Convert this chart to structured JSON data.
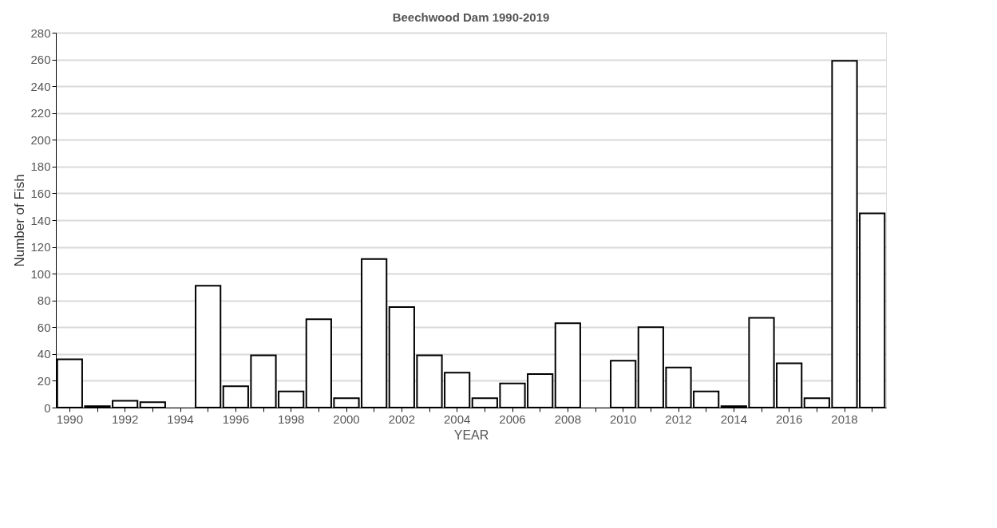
{
  "chart_data": {
    "type": "bar",
    "title": "Beechwood Dam 1990-2019",
    "xlabel": "YEAR",
    "ylabel": "Number of Fish",
    "categories": [
      "1990",
      null,
      "1992",
      null,
      "1994",
      null,
      "1996",
      null,
      "1998",
      null,
      "2000",
      null,
      "2002",
      null,
      "2004",
      null,
      "2006",
      null,
      "2008",
      null,
      "2010",
      null,
      "2012",
      null,
      "2014",
      null,
      "2016",
      null,
      "2018",
      null
    ],
    "values": [
      36,
      1,
      5,
      4,
      0,
      91,
      16,
      39,
      12,
      66,
      7,
      111,
      75,
      39,
      26,
      7,
      18,
      25,
      63,
      0,
      35,
      60,
      30,
      12,
      1,
      67,
      33,
      7,
      259,
      145
    ],
    "color": "#ffffff",
    "ylim": [
      0,
      280
    ],
    "yticks": [
      0,
      20,
      40,
      60,
      80,
      100,
      120,
      140,
      160,
      180,
      200,
      220,
      240,
      260,
      280
    ],
    "grid": "y"
  }
}
